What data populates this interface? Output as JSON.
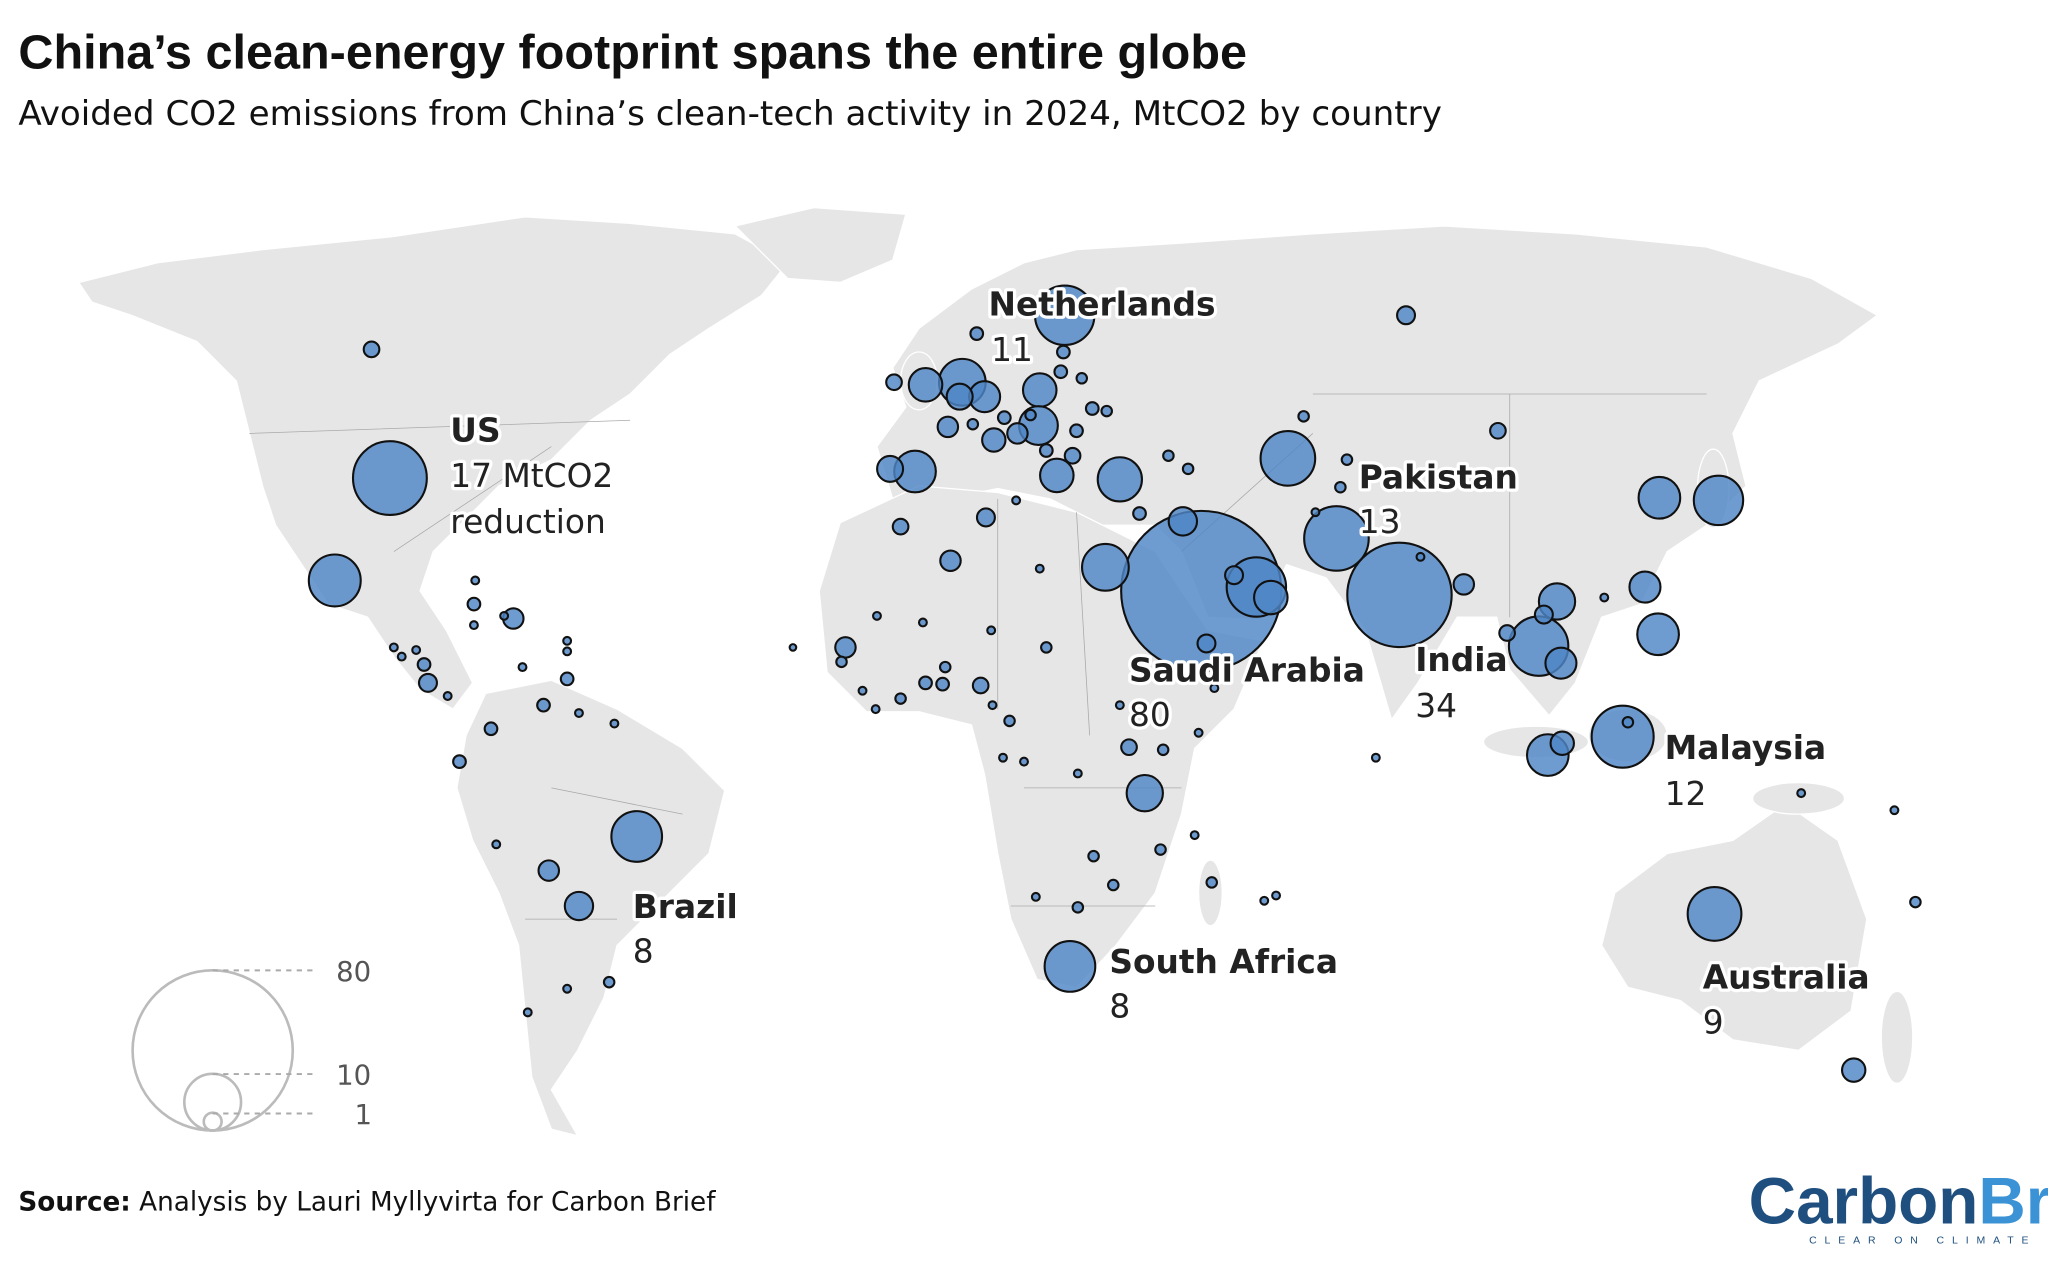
{
  "title": "China’s clean-energy footprint spans the entire globe",
  "subtitle": "Avoided CO2 emissions from China’s clean-tech activity in 2024, MtCO2 by country",
  "source": {
    "label": "Source:",
    "text": " Analysis by Lauri Myllyvirta for Carbon Brief"
  },
  "logo": {
    "part1": "Carbon",
    "part2": "Brief",
    "tagline": "CLEAR ON CLIMATE"
  },
  "colors": {
    "bubble": "#4f86c6",
    "land": "#e6e6e6",
    "logo_dark": "#1e4f7e",
    "logo_light": "#3b93d6"
  },
  "legend": {
    "values": [
      "80",
      "10",
      "1"
    ]
  },
  "labels": [
    {
      "name": "Netherlands",
      "value": "11"
    },
    {
      "name": "US",
      "value": "17 MtCO2",
      "extra": "reduction"
    },
    {
      "name": "Pakistan",
      "value": "13"
    },
    {
      "name": "Saudi Arabia",
      "value": "80"
    },
    {
      "name": "India",
      "value": "34"
    },
    {
      "name": "Malaysia",
      "value": "12"
    },
    {
      "name": "Brazil",
      "value": "8"
    },
    {
      "name": "South Africa",
      "value": "8"
    },
    {
      "name": "Australia",
      "value": "9"
    }
  ],
  "labeled_bubbles": {
    "Netherlands": 11,
    "US": 17,
    "Pakistan": 13,
    "Saudi Arabia": 80,
    "India": 34,
    "Malaysia": 12,
    "Brazil": 8,
    "South Africa": 8,
    "Australia": 9
  },
  "other_bubbles": [
    8.4,
    0.76,
    6.8,
    3.5,
    3.0,
    2.1,
    3.5,
    4.7,
    1.3,
    1.7,
    1.3,
    0.76,
    0.5,
    0.5,
    0.5,
    0.34,
    0.5,
    0.34,
    0.5,
    0.76,
    0.5,
    0.5,
    0.34,
    0.34,
    5.4,
    2.1,
    3.5,
    6.1,
    1.0,
    0.34,
    0.76,
    9.3,
    0.76,
    1.0,
    0.19,
    6.8,
    1.3,
    2.5,
    0.5,
    0.34,
    0.34,
    11,
    3.5,
    1.0,
    7.6,
    5.4,
    3.0,
    5.4,
    4.1,
    11,
    1.0,
    3.0,
    0.76,
    1.3,
    5.4,
    1.7,
    0.34,
    0.19,
    0.19,
    0.19,
    0.19,
    0.34,
    1.7,
    0.76,
    0.5,
    0.5,
    0.34,
    1.3,
    0.34,
    0.08,
    0.19,
    0.19,
    0.19,
    0.19,
    0.34,
    0.19,
    0.34,
    0.19,
    0.76,
    0.34,
    4.1,
    1.0,
    0.19,
    0.19,
    0.19,
    0.34,
    0.34,
    0.34,
    0.34,
    0.19,
    0.19,
    0.19,
    0.34,
    0.19,
    0.19,
    0.19,
    0.19,
    0.19,
    0.34,
    0.19,
    0.5,
    0.19,
    1.3,
    0.19,
    0.19,
    0.19,
    0.19,
    0.5,
    0.19,
    0.19,
    0.5,
    0.19,
    0.19,
    0.19,
    0.5,
    1.0,
    0.19,
    0.5,
    0.5,
    0.19,
    1.3,
    2.5,
    0.19,
    0.19,
    0.34,
    0.34,
    0.19,
    0.34,
    0.19
  ]
}
